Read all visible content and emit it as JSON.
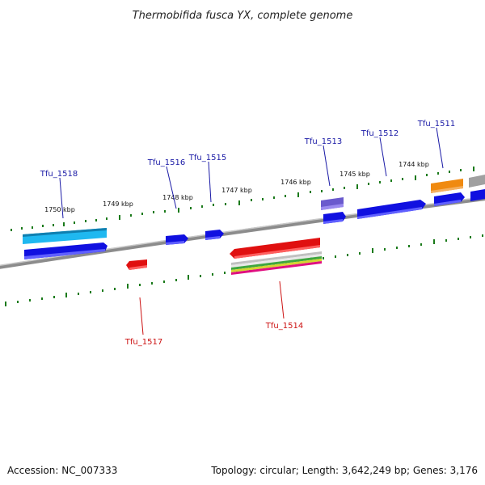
{
  "title": "Thermobifida fusca YX, complete genome",
  "accession": "Accession: NC_007333",
  "summary": "Topology: circular; Length: 3,642,249 bp; Genes: 3,176",
  "kbp_labels": [
    "1750 kbp",
    "1749 kbp",
    "1748 kbp",
    "1747 kbp",
    "1746 kbp",
    "1745 kbp",
    "1744 kbp"
  ],
  "genes_top": [
    "Tfu_1518",
    "Tfu_1516",
    "Tfu_1515",
    "Tfu_1513",
    "Tfu_1512",
    "Tfu_1511"
  ],
  "genes_bottom": [
    "Tfu_1517",
    "Tfu_1514"
  ],
  "colors": {
    "backbone": "#8c8c8c",
    "ticks": "#1a7a1a",
    "gene_blue": "#1010e0",
    "gene_light_blue": "#1fb8f0",
    "gene_red": "#e01010",
    "gene_orange": "#f08a10",
    "gene_purple": "#6a5acd",
    "gene_gray": "#a0a0a0",
    "label_top": "#1a1aa6",
    "label_bottom": "#cc1111"
  }
}
